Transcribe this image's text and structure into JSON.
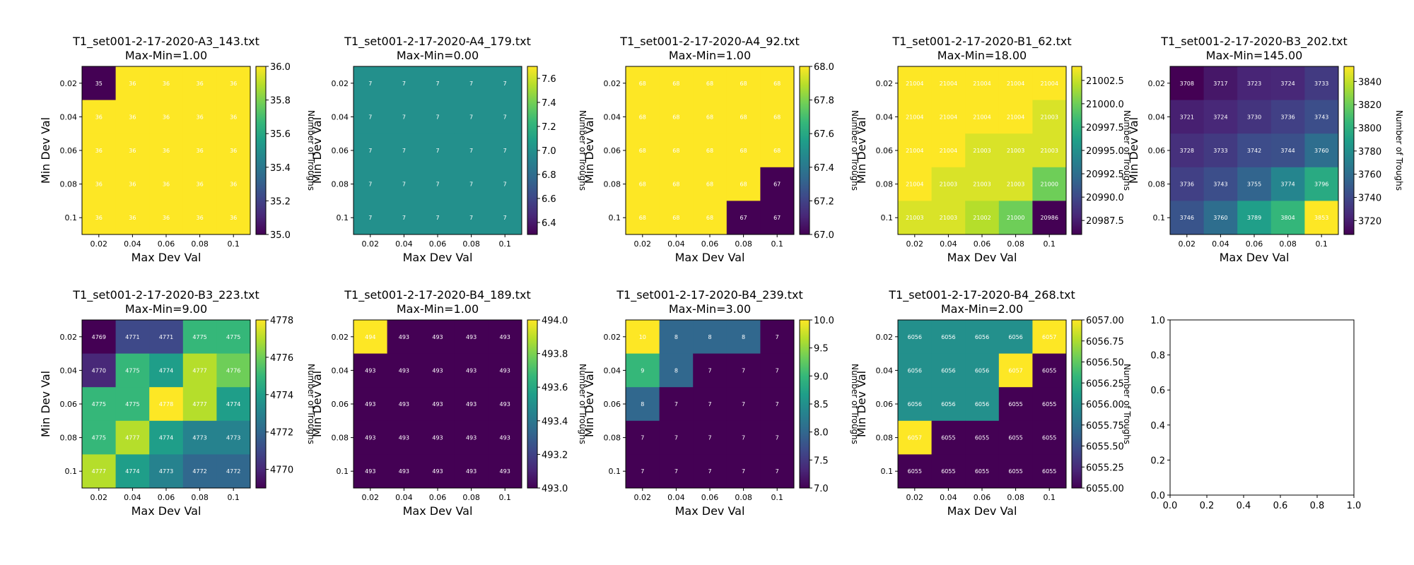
{
  "colormap_name": "viridis",
  "chart_data": [
    {
      "type": "heatmap",
      "title": "T1_set001-2-17-2020-A3_143.txt",
      "subtitle": "Max-Min=1.00",
      "xlabel": "Max Dev Val",
      "ylabel": "Min Dev Val",
      "colorbar_label": "Number of Troughs",
      "x_ticks": [
        "0.02",
        "0.04",
        "0.06",
        "0.08",
        "0.1"
      ],
      "y_ticks": [
        "0.02",
        "0.04",
        "0.06",
        "0.08",
        "0.1"
      ],
      "vmin": 35,
      "vmax": 36,
      "colorbar_ticks": [
        "35.0",
        "35.2",
        "35.4",
        "35.6",
        "35.8",
        "36.0"
      ],
      "values": [
        [
          35,
          36,
          36,
          36,
          36
        ],
        [
          36,
          36,
          36,
          36,
          36
        ],
        [
          36,
          36,
          36,
          36,
          36
        ],
        [
          36,
          36,
          36,
          36,
          36
        ],
        [
          36,
          36,
          36,
          36,
          36
        ]
      ]
    },
    {
      "type": "heatmap",
      "title": "T1_set001-2-17-2020-A4_179.txt",
      "subtitle": "Max-Min=0.00",
      "xlabel": "Max Dev Val",
      "ylabel": "Min Dev Val",
      "colorbar_label": "Number of Troughs",
      "x_ticks": [
        "0.02",
        "0.04",
        "0.06",
        "0.08",
        "0.1"
      ],
      "y_ticks": [
        "0.02",
        "0.04",
        "0.06",
        "0.08",
        "0.1"
      ],
      "vmin": 6.3,
      "vmax": 7.7,
      "colorbar_ticks": [
        "6.4",
        "6.6",
        "6.8",
        "7.0",
        "7.2",
        "7.4",
        "7.6"
      ],
      "values": [
        [
          7,
          7,
          7,
          7,
          7
        ],
        [
          7,
          7,
          7,
          7,
          7
        ],
        [
          7,
          7,
          7,
          7,
          7
        ],
        [
          7,
          7,
          7,
          7,
          7
        ],
        [
          7,
          7,
          7,
          7,
          7
        ]
      ]
    },
    {
      "type": "heatmap",
      "title": "T1_set001-2-17-2020-A4_92.txt",
      "subtitle": "Max-Min=1.00",
      "xlabel": "Max Dev Val",
      "ylabel": "Min Dev Val",
      "colorbar_label": "Number of Troughs",
      "x_ticks": [
        "0.02",
        "0.04",
        "0.06",
        "0.08",
        "0.1"
      ],
      "y_ticks": [
        "0.02",
        "0.04",
        "0.06",
        "0.08",
        "0.1"
      ],
      "vmin": 67,
      "vmax": 68,
      "colorbar_ticks": [
        "67.0",
        "67.2",
        "67.4",
        "67.6",
        "67.8",
        "68.0"
      ],
      "values": [
        [
          68,
          68,
          68,
          68,
          68
        ],
        [
          68,
          68,
          68,
          68,
          68
        ],
        [
          68,
          68,
          68,
          68,
          68
        ],
        [
          68,
          68,
          68,
          68,
          67
        ],
        [
          68,
          68,
          68,
          67,
          67
        ]
      ]
    },
    {
      "type": "heatmap",
      "title": "T1_set001-2-17-2020-B1_62.txt",
      "subtitle": "Max-Min=18.00",
      "xlabel": "Max Dev Val",
      "ylabel": "Min Dev Val",
      "colorbar_label": "Number of Troughs",
      "x_ticks": [
        "0.02",
        "0.04",
        "0.06",
        "0.08",
        "0.1"
      ],
      "y_ticks": [
        "0.02",
        "0.04",
        "0.06",
        "0.08",
        "0.1"
      ],
      "vmin": 20986,
      "vmax": 21004,
      "colorbar_ticks": [
        "20987.5",
        "20990.0",
        "20992.5",
        "20995.0",
        "20997.5",
        "21000.0",
        "21002.5"
      ],
      "values": [
        [
          21004,
          21004,
          21004,
          21004,
          21004
        ],
        [
          21004,
          21004,
          21004,
          21004,
          21003
        ],
        [
          21004,
          21004,
          21003,
          21003,
          21003
        ],
        [
          21004,
          21003,
          21003,
          21003,
          21000
        ],
        [
          21003,
          21003,
          21002,
          21000,
          20986
        ]
      ]
    },
    {
      "type": "heatmap",
      "title": "T1_set001-2-17-2020-B3_202.txt",
      "subtitle": "Max-Min=145.00",
      "xlabel": "Max Dev Val",
      "ylabel": "Min Dev Val",
      "colorbar_label": "Number of Troughs",
      "x_ticks": [
        "0.02",
        "0.04",
        "0.06",
        "0.08",
        "0.1"
      ],
      "y_ticks": [
        "0.02",
        "0.04",
        "0.06",
        "0.08",
        "0.1"
      ],
      "vmin": 3708,
      "vmax": 3853,
      "colorbar_ticks": [
        "3720",
        "3740",
        "3760",
        "3780",
        "3800",
        "3820",
        "3840"
      ],
      "values": [
        [
          3708,
          3717,
          3723,
          3724,
          3733
        ],
        [
          3721,
          3724,
          3730,
          3736,
          3743
        ],
        [
          3728,
          3733,
          3742,
          3744,
          3760
        ],
        [
          3736,
          3743,
          3755,
          3774,
          3796
        ],
        [
          3746,
          3760,
          3789,
          3804,
          3853
        ]
      ]
    },
    {
      "type": "heatmap",
      "title": "T1_set001-2-17-2020-B3_223.txt",
      "subtitle": "Max-Min=9.00",
      "xlabel": "Max Dev Val",
      "ylabel": "Min Dev Val",
      "colorbar_label": "Number of Troughs",
      "x_ticks": [
        "0.02",
        "0.04",
        "0.06",
        "0.08",
        "0.1"
      ],
      "y_ticks": [
        "0.02",
        "0.04",
        "0.06",
        "0.08",
        "0.1"
      ],
      "vmin": 4769,
      "vmax": 4778,
      "colorbar_ticks": [
        "4770",
        "4772",
        "4774",
        "4776",
        "4778"
      ],
      "values": [
        [
          4769,
          4771,
          4771,
          4775,
          4775
        ],
        [
          4770,
          4775,
          4774,
          4777,
          4776
        ],
        [
          4775,
          4775,
          4778,
          4777,
          4774
        ],
        [
          4775,
          4777,
          4774,
          4773,
          4773
        ],
        [
          4777,
          4774,
          4773,
          4772,
          4772
        ]
      ]
    },
    {
      "type": "heatmap",
      "title": "T1_set001-2-17-2020-B4_189.txt",
      "subtitle": "Max-Min=1.00",
      "xlabel": "Max Dev Val",
      "ylabel": "Min Dev Val",
      "colorbar_label": "Number of Troughs",
      "x_ticks": [
        "0.02",
        "0.04",
        "0.06",
        "0.08",
        "0.1"
      ],
      "y_ticks": [
        "0.02",
        "0.04",
        "0.06",
        "0.08",
        "0.1"
      ],
      "vmin": 493,
      "vmax": 494,
      "colorbar_ticks": [
        "493.0",
        "493.2",
        "493.4",
        "493.6",
        "493.8",
        "494.0"
      ],
      "values": [
        [
          494,
          493,
          493,
          493,
          493
        ],
        [
          493,
          493,
          493,
          493,
          493
        ],
        [
          493,
          493,
          493,
          493,
          493
        ],
        [
          493,
          493,
          493,
          493,
          493
        ],
        [
          493,
          493,
          493,
          493,
          493
        ]
      ]
    },
    {
      "type": "heatmap",
      "title": "T1_set001-2-17-2020-B4_239.txt",
      "subtitle": "Max-Min=3.00",
      "xlabel": "Max Dev Val",
      "ylabel": "Min Dev Val",
      "colorbar_label": "Number of Troughs",
      "x_ticks": [
        "0.02",
        "0.04",
        "0.06",
        "0.08",
        "0.1"
      ],
      "y_ticks": [
        "0.02",
        "0.04",
        "0.06",
        "0.08",
        "0.1"
      ],
      "vmin": 7,
      "vmax": 10,
      "colorbar_ticks": [
        "7.0",
        "7.5",
        "8.0",
        "8.5",
        "9.0",
        "9.5",
        "10.0"
      ],
      "values": [
        [
          10,
          8,
          8,
          8,
          7
        ],
        [
          9,
          8,
          7,
          7,
          7
        ],
        [
          8,
          7,
          7,
          7,
          7
        ],
        [
          7,
          7,
          7,
          7,
          7
        ],
        [
          7,
          7,
          7,
          7,
          7
        ]
      ]
    },
    {
      "type": "heatmap",
      "title": "T1_set001-2-17-2020-B4_268.txt",
      "subtitle": "Max-Min=2.00",
      "xlabel": "Max Dev Val",
      "ylabel": "Min Dev Val",
      "colorbar_label": "Number of Troughs",
      "x_ticks": [
        "0.02",
        "0.04",
        "0.06",
        "0.08",
        "0.1"
      ],
      "y_ticks": [
        "0.02",
        "0.04",
        "0.06",
        "0.08",
        "0.1"
      ],
      "vmin": 6055,
      "vmax": 6057,
      "colorbar_ticks": [
        "6055.00",
        "6055.25",
        "6055.50",
        "6055.75",
        "6056.00",
        "6056.25",
        "6056.50",
        "6056.75",
        "6057.00"
      ],
      "values": [
        [
          6056,
          6056,
          6056,
          6056,
          6057
        ],
        [
          6056,
          6056,
          6056,
          6057,
          6055
        ],
        [
          6056,
          6056,
          6056,
          6055,
          6055
        ],
        [
          6057,
          6055,
          6055,
          6055,
          6055
        ],
        [
          6055,
          6055,
          6055,
          6055,
          6055
        ]
      ]
    },
    {
      "type": "empty-axes",
      "x_ticks": [
        "0.0",
        "0.2",
        "0.4",
        "0.6",
        "0.8",
        "1.0"
      ],
      "y_ticks": [
        "0.0",
        "0.2",
        "0.4",
        "0.6",
        "0.8",
        "1.0"
      ],
      "xlim": [
        0,
        1
      ],
      "ylim": [
        0,
        1
      ]
    }
  ]
}
